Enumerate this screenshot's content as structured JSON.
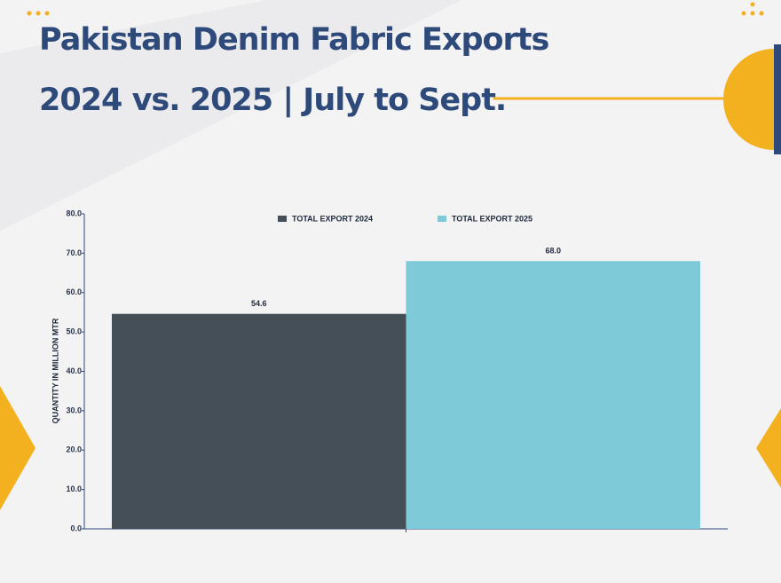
{
  "chart_data": {
    "type": "bar",
    "title": [
      "Pakistan Denim Fabric Exports",
      "2024 vs. 2025 | July to Sept."
    ],
    "y_label": "QUANTITY IN MILLION MTR",
    "categories": [
      null
    ],
    "series": [
      {
        "name": "TOTAL EXPORT 2024",
        "color": "#444f58",
        "values": [
          54.6
        ]
      },
      {
        "name": "TOTAL EXPORT 2025",
        "color": "#7ecad9",
        "values": [
          68.0
        ],
        "value_labels": [
          "68.0"
        ]
      }
    ],
    "ylim": [
      0,
      80
    ],
    "yticks": [
      {
        "value": 0,
        "label": "0.0"
      },
      {
        "value": 10,
        "label": "10.0"
      },
      {
        "value": 20,
        "label": "20.0"
      },
      {
        "value": 30,
        "label": "30.0"
      },
      {
        "value": 40,
        "label": "40.0"
      },
      {
        "value": 50,
        "label": "50.0"
      },
      {
        "value": 60,
        "label": "60.0"
      },
      {
        "value": 70,
        "label": "70.0"
      },
      {
        "value": 80,
        "label": "80.0"
      }
    ],
    "legend": "top"
  }
}
